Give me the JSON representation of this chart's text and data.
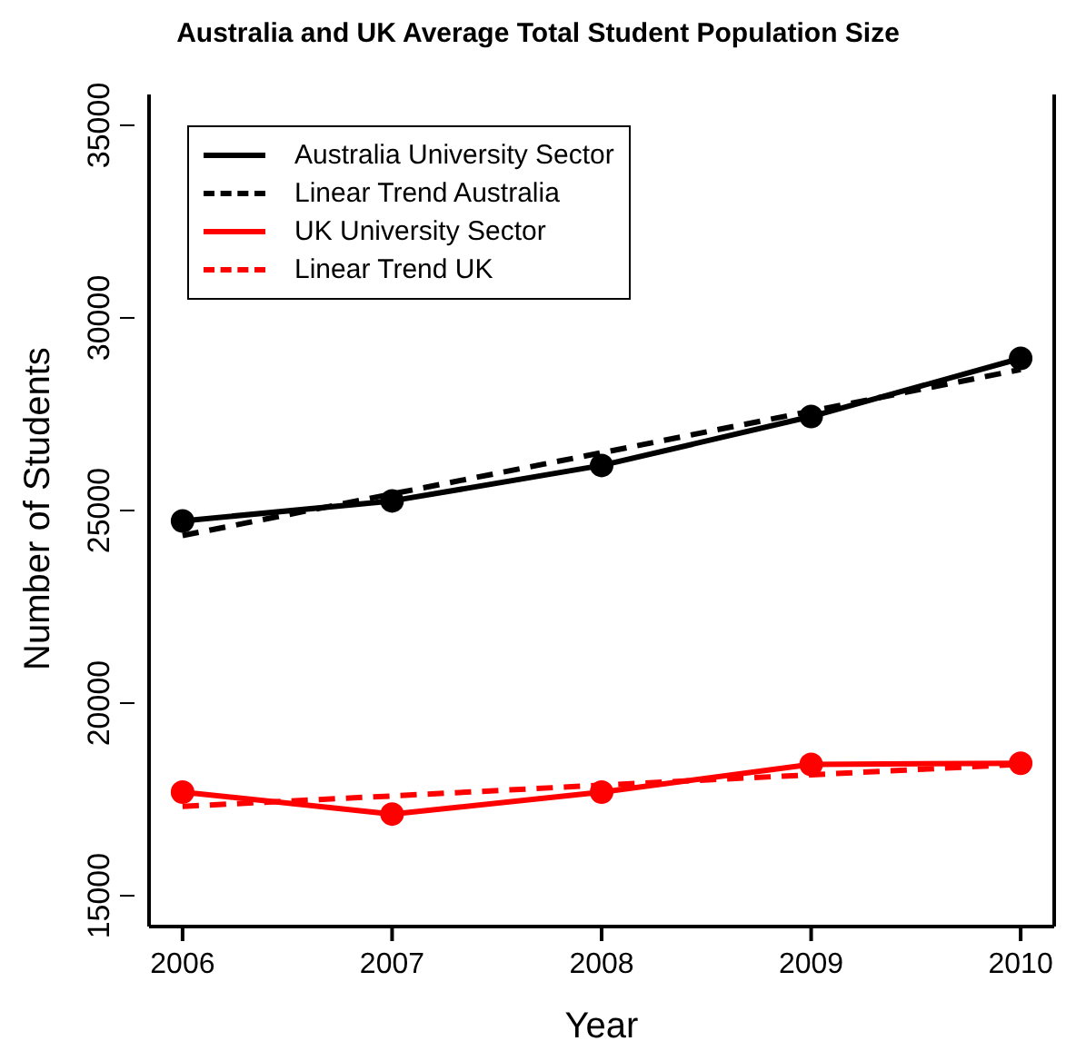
{
  "chart_data": {
    "type": "line",
    "title": "Australia and UK Average Total Student Population Size",
    "xlabel": "Year",
    "ylabel": "Number of Students",
    "x": [
      2006,
      2007,
      2008,
      2009,
      2010
    ],
    "xlim": [
      2005.84,
      2010.16
    ],
    "xticks": [
      2006,
      2007,
      2008,
      2009,
      2010
    ],
    "ylim": [
      14200,
      35800
    ],
    "yticks": [
      15000,
      20000,
      25000,
      30000,
      35000
    ],
    "grid": false,
    "legend": "top left",
    "series": [
      {
        "name": "Australia University Sector",
        "color": "#000000",
        "values": [
          24730,
          25250,
          26170,
          27440,
          28950
        ],
        "marker": "circle",
        "line_style": "solid"
      },
      {
        "name": "Linear Trend Australia",
        "color": "#000000",
        "values": [
          24350,
          25430,
          26500,
          27580,
          28660
        ],
        "marker": "none",
        "line_style": "dashed"
      },
      {
        "name": "UK University Sector",
        "color": "#ff0000",
        "values": [
          17690,
          17120,
          17690,
          18410,
          18440
        ],
        "marker": "circle",
        "line_style": "solid"
      },
      {
        "name": "Linear Trend UK",
        "color": "#ff0000",
        "values": [
          17320,
          17590,
          17870,
          18140,
          18410
        ],
        "marker": "none",
        "line_style": "dashed"
      }
    ]
  }
}
